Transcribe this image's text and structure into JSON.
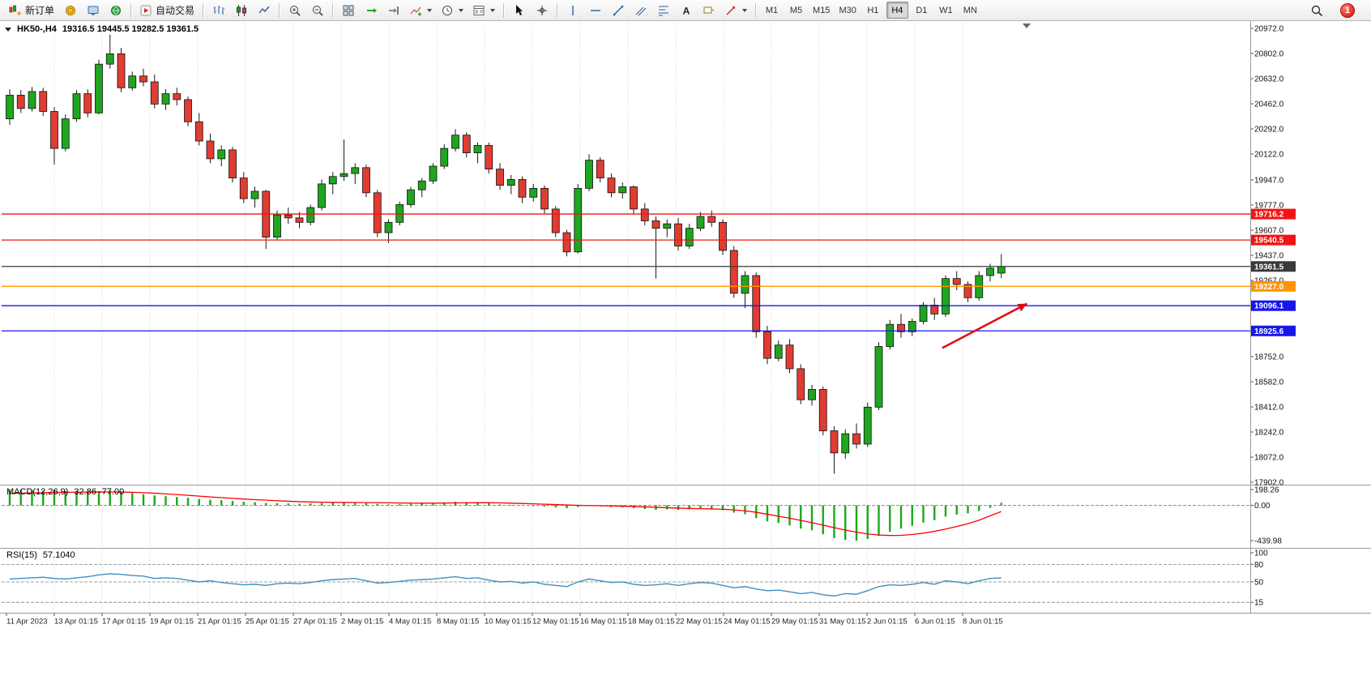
{
  "toolbar": {
    "new_order_label": "新订单",
    "autotrading_label": "自动交易",
    "timeframes": [
      "M1",
      "M5",
      "M15",
      "M30",
      "H1",
      "H4",
      "D1",
      "W1",
      "MN"
    ],
    "active_timeframe": "H4",
    "notification_count": "1"
  },
  "chart_data": {
    "type": "candlestick",
    "header": {
      "symbol_period": "HK50-,H4",
      "ohlc": "19316.5 19445.5 19282.5 19361.5"
    },
    "price_axis": {
      "range": [
        17902,
        20972
      ],
      "labels": [
        "20972.0",
        "20802.0",
        "20632.0",
        "20462.0",
        "20292.0",
        "20122.0",
        "19947.0",
        "19777.0",
        "19607.0",
        "19437.0",
        "19267.0",
        "18752.0",
        "18582.0",
        "18412.0",
        "18242.0",
        "18072.0",
        "17902.0"
      ]
    },
    "price_lines": [
      {
        "value": 19716.2,
        "label": "19716.2",
        "color": "#f01515"
      },
      {
        "value": 19540.5,
        "label": "19540.5",
        "color": "#f01515"
      },
      {
        "value": 19361.5,
        "label": "19361.5",
        "color": "#3a3a3a",
        "role": "current-price"
      },
      {
        "value": 19227.0,
        "label": "19227.0",
        "color": "#ff9500"
      },
      {
        "value": 19096.1,
        "label": "19096.1",
        "color": "#1717e8"
      },
      {
        "value": 18925.6,
        "label": "18925.6",
        "color": "#1717e8"
      }
    ],
    "colors": {
      "up": "#1fa51f",
      "down": "#e03c32",
      "wick": "#1a1a1a"
    },
    "candles": [
      [
        20360,
        20560,
        20320,
        20520
      ],
      [
        20520,
        20555,
        20400,
        20430
      ],
      [
        20430,
        20575,
        20410,
        20545
      ],
      [
        20545,
        20570,
        20380,
        20410
      ],
      [
        20410,
        20440,
        20050,
        20160
      ],
      [
        20160,
        20390,
        20140,
        20360
      ],
      [
        20360,
        20555,
        20340,
        20530
      ],
      [
        20530,
        20560,
        20370,
        20400
      ],
      [
        20400,
        20760,
        20390,
        20730
      ],
      [
        20730,
        20930,
        20700,
        20800
      ],
      [
        20800,
        20840,
        20540,
        20570
      ],
      [
        20570,
        20680,
        20550,
        20650
      ],
      [
        20650,
        20700,
        20580,
        20610
      ],
      [
        20610,
        20660,
        20430,
        20460
      ],
      [
        20460,
        20560,
        20420,
        20530
      ],
      [
        20530,
        20570,
        20450,
        20490
      ],
      [
        20490,
        20510,
        20310,
        20340
      ],
      [
        20340,
        20400,
        20180,
        20210
      ],
      [
        20210,
        20260,
        20060,
        20090
      ],
      [
        20090,
        20180,
        20040,
        20150
      ],
      [
        20150,
        20170,
        19930,
        19960
      ],
      [
        19960,
        20000,
        19790,
        19820
      ],
      [
        19820,
        19900,
        19760,
        19870
      ],
      [
        19870,
        19880,
        19480,
        19560
      ],
      [
        19560,
        19740,
        19540,
        19710
      ],
      [
        19710,
        19760,
        19650,
        19690
      ],
      [
        19690,
        19730,
        19620,
        19660
      ],
      [
        19660,
        19780,
        19640,
        19760
      ],
      [
        19760,
        19950,
        19740,
        19920
      ],
      [
        19920,
        20000,
        19850,
        19970
      ],
      [
        19970,
        20220,
        19940,
        19990
      ],
      [
        19990,
        20060,
        19920,
        20030
      ],
      [
        20030,
        20050,
        19830,
        19860
      ],
      [
        19860,
        19880,
        19560,
        19590
      ],
      [
        19590,
        19680,
        19520,
        19660
      ],
      [
        19660,
        19800,
        19640,
        19780
      ],
      [
        19780,
        19900,
        19760,
        19880
      ],
      [
        19880,
        19960,
        19830,
        19940
      ],
      [
        19940,
        20060,
        19920,
        20040
      ],
      [
        20040,
        20190,
        20020,
        20160
      ],
      [
        20160,
        20290,
        20140,
        20250
      ],
      [
        20250,
        20270,
        20100,
        20130
      ],
      [
        20130,
        20200,
        20060,
        20180
      ],
      [
        20180,
        20200,
        19990,
        20020
      ],
      [
        20020,
        20060,
        19880,
        19910
      ],
      [
        19910,
        19980,
        19850,
        19950
      ],
      [
        19950,
        19970,
        19790,
        19830
      ],
      [
        19830,
        19920,
        19800,
        19890
      ],
      [
        19890,
        19910,
        19720,
        19750
      ],
      [
        19750,
        19770,
        19560,
        19590
      ],
      [
        19590,
        19610,
        19430,
        19460
      ],
      [
        19460,
        19920,
        19450,
        19890
      ],
      [
        19890,
        20120,
        19870,
        20080
      ],
      [
        20080,
        20100,
        19930,
        19960
      ],
      [
        19960,
        19990,
        19830,
        19860
      ],
      [
        19860,
        19930,
        19820,
        19900
      ],
      [
        19900,
        19910,
        19720,
        19750
      ],
      [
        19750,
        19790,
        19640,
        19670
      ],
      [
        19670,
        19700,
        19280,
        19620
      ],
      [
        19620,
        19680,
        19560,
        19650
      ],
      [
        19650,
        19690,
        19470,
        19500
      ],
      [
        19500,
        19650,
        19480,
        19620
      ],
      [
        19620,
        19730,
        19600,
        19700
      ],
      [
        19700,
        19740,
        19630,
        19660
      ],
      [
        19660,
        19680,
        19440,
        19470
      ],
      [
        19470,
        19500,
        19150,
        19180
      ],
      [
        19180,
        19330,
        19080,
        19300
      ],
      [
        19300,
        19320,
        18880,
        18920
      ],
      [
        18920,
        18960,
        18700,
        18740
      ],
      [
        18740,
        18860,
        18720,
        18830
      ],
      [
        18830,
        18870,
        18640,
        18670
      ],
      [
        18670,
        18700,
        18430,
        18460
      ],
      [
        18460,
        18560,
        18420,
        18530
      ],
      [
        18530,
        18550,
        18220,
        18250
      ],
      [
        18250,
        18280,
        17960,
        18100
      ],
      [
        18100,
        18260,
        18060,
        18230
      ],
      [
        18230,
        18300,
        18130,
        18160
      ],
      [
        18160,
        18440,
        18140,
        18410
      ],
      [
        18410,
        18850,
        18390,
        18820
      ],
      [
        18820,
        19000,
        18800,
        18970
      ],
      [
        18970,
        19040,
        18880,
        18920
      ],
      [
        18920,
        19010,
        18890,
        18990
      ],
      [
        18990,
        19120,
        18970,
        19100
      ],
      [
        19100,
        19150,
        19000,
        19040
      ],
      [
        19040,
        19300,
        19020,
        19280
      ],
      [
        19280,
        19330,
        19200,
        19240
      ],
      [
        19240,
        19260,
        19120,
        19150
      ],
      [
        19150,
        19330,
        19130,
        19300
      ],
      [
        19300,
        19380,
        19260,
        19350
      ],
      [
        19316.5,
        19445.5,
        19282.5,
        19361.5
      ]
    ],
    "dates": [
      "11 Apr 2023",
      "13 Apr 01:15",
      "17 Apr 01:15",
      "19 Apr 01:15",
      "21 Apr 01:15",
      "25 Apr 01:15",
      "27 Apr 01:15",
      "2 May 01:15",
      "4 May 01:15",
      "8 May 01:15",
      "10 May 01:15",
      "12 May 01:15",
      "16 May 01:15",
      "18 May 01:15",
      "22 May 01:15",
      "24 May 01:15",
      "29 May 01:15",
      "31 May 01:15",
      "2 Jun 01:15",
      "6 Jun 01:15",
      "8 Jun 01:15"
    ],
    "annotation_arrow": {
      "color": "#e01010",
      "from_bar": 83.7,
      "from_price": 18810,
      "to_bar": 91.3,
      "to_price": 19110
    },
    "macd": {
      "label": "MACD(12,26,9)",
      "values_text": "32.86 -77.00",
      "scale_labels": [
        "198.26",
        "0.00",
        "-439.98"
      ],
      "max": 198.26,
      "min": -439.98,
      "histogram_color": "#19a819",
      "signal_color": "#ff0000",
      "histogram": [
        198,
        195,
        190,
        185,
        192,
        180,
        175,
        172,
        178,
        186,
        170,
        155,
        140,
        125,
        115,
        105,
        95,
        80,
        70,
        65,
        55,
        45,
        40,
        30,
        28,
        25,
        22,
        25,
        30,
        35,
        38,
        36,
        28,
        18,
        12,
        15,
        20,
        25,
        30,
        38,
        45,
        40,
        35,
        25,
        12,
        5,
        -5,
        -8,
        -15,
        -25,
        -35,
        -20,
        -5,
        -10,
        -20,
        -25,
        -35,
        -45,
        -55,
        -50,
        -55,
        -48,
        -40,
        -42,
        -60,
        -90,
        -110,
        -160,
        -200,
        -220,
        -250,
        -290,
        -310,
        -360,
        -410,
        -430,
        -440,
        -420,
        -380,
        -330,
        -290,
        -255,
        -215,
        -185,
        -140,
        -115,
        -100,
        -70,
        -30,
        32.86
      ],
      "signal": [
        150,
        153,
        156,
        159,
        162,
        164,
        165,
        166,
        167,
        168,
        167,
        164,
        159,
        152,
        144,
        135,
        126,
        116,
        106,
        97,
        88,
        80,
        72,
        65,
        58,
        52,
        47,
        43,
        40,
        38,
        37,
        36,
        35,
        34,
        32,
        30,
        29,
        28,
        28,
        29,
        31,
        32,
        33,
        33,
        31,
        28,
        24,
        20,
        15,
        10,
        5,
        1,
        -2,
        -4,
        -7,
        -10,
        -14,
        -19,
        -24,
        -29,
        -34,
        -38,
        -41,
        -44,
        -48,
        -56,
        -68,
        -86,
        -110,
        -135,
        -160,
        -188,
        -216,
        -246,
        -278,
        -308,
        -335,
        -356,
        -370,
        -376,
        -374,
        -364,
        -347,
        -324,
        -296,
        -264,
        -228,
        -185,
        -130,
        -77
      ]
    },
    "rsi": {
      "label": "RSI(15)",
      "value_text": "57.1040",
      "scale_labels": [
        "100",
        "80",
        "50",
        "15"
      ],
      "levels": [
        80,
        50,
        15
      ],
      "color": "#3f8fc4",
      "values": [
        55,
        56,
        57,
        58,
        56,
        55,
        57,
        59,
        62,
        64,
        63,
        61,
        60,
        56,
        57,
        56,
        53,
        50,
        52,
        49,
        47,
        45,
        46,
        44,
        47,
        48,
        47,
        49,
        52,
        54,
        55,
        56,
        52,
        48,
        49,
        51,
        53,
        54,
        55,
        57,
        59,
        56,
        57,
        53,
        50,
        51,
        48,
        50,
        46,
        44,
        42,
        50,
        55,
        52,
        49,
        50,
        46,
        44,
        45,
        47,
        44,
        47,
        49,
        48,
        44,
        40,
        42,
        38,
        35,
        36,
        33,
        30,
        32,
        28,
        26,
        30,
        29,
        35,
        42,
        45,
        44,
        46,
        49,
        46,
        52,
        50,
        47,
        52,
        56,
        57.1
      ]
    }
  }
}
